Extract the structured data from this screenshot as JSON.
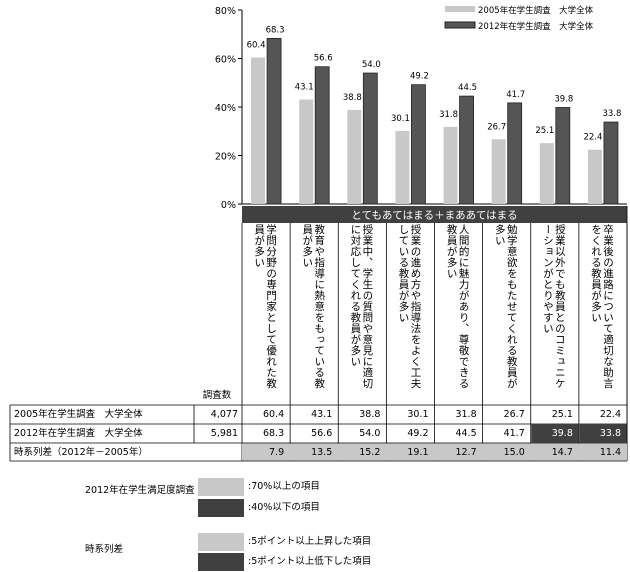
{
  "chart_data": {
    "type": "bar",
    "ylim": [
      0,
      80
    ],
    "yticks": [
      "0%",
      "20%",
      "40%",
      "60%",
      "80%"
    ],
    "header": "とてもあてはまる＋まああてはまる",
    "categories": [
      "学問分野の専門家として優れた教員が多い",
      "教育や指導に熱意をもっている教員が多い",
      "授業中、学生の質問や意見に適切に対応してくれる教員が多い",
      "授業の進め方や指導法をよく工夫している教員が多い",
      "人間的に魅力があり、尊敬できる教員が多い",
      "勉学意欲をもたせてくれる教員が多い",
      "授業以外でも教員とのコミュニケーションがとりやすい",
      "卒業後の進路について適切な助言をくれる教員が多い"
    ],
    "series": [
      {
        "name": "2005年在学生調査　大学全体",
        "color": "#c8c8c8",
        "n": "4,077",
        "values": [
          60.4,
          43.1,
          38.8,
          30.1,
          31.8,
          26.7,
          25.1,
          22.4
        ]
      },
      {
        "name": "2012年在学生調査　大学全体",
        "color": "#555555",
        "n": "5,981",
        "values": [
          68.3,
          56.6,
          54.0,
          49.2,
          44.5,
          41.7,
          39.8,
          33.8
        ]
      }
    ],
    "diff_label": "時系列差（2012年－2005年）",
    "diff": [
      7.9,
      13.5,
      15.2,
      19.1,
      12.7,
      15.0,
      14.7,
      11.4
    ],
    "n_header": "調査数"
  },
  "legend_notes": {
    "satisfaction_title": "2012年在学生満足度調査",
    "over70": ":70%以上の項目",
    "under40": ":40%以下の項目",
    "diff_title": "時系列差",
    "up5": ":5ポイント以上上昇した項目",
    "down5": ":5ポイント以上低下した項目"
  },
  "colors": {
    "light": "#c8c8c8",
    "dark": "#555555",
    "header_bg": "#404040"
  }
}
